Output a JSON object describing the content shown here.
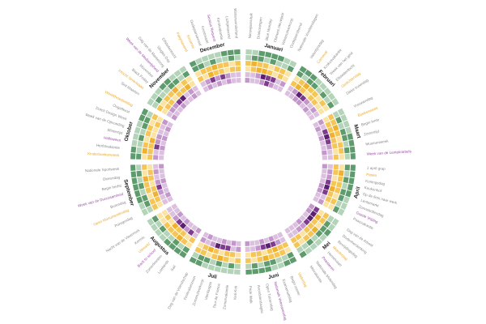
{
  "chart_data": {
    "type": "heatmap",
    "layout": "radial",
    "title": "",
    "rings": [
      "outer-green",
      "middle-yellow",
      "inner-purple"
    ],
    "colors": {
      "green_dark": "#5e9c6e",
      "green_light": "#b3d4b9",
      "yellow_dark": "#f0b22e",
      "yellow_light": "#fbe3a4",
      "purple_dark": "#7e3c8e",
      "purple_light": "#dcc0e0",
      "label_grey": "#8a8a8a",
      "label_yellow": "#e8a92b",
      "label_purple": "#9a4fa6",
      "month_text": "#222222"
    },
    "months": [
      {
        "name": "Januari",
        "events": [
          {
            "label": "Nieuwjaarsduik",
            "color": "grey"
          },
          {
            "label": "Driekoningen",
            "color": "grey"
          },
          {
            "label": "Blue Monday",
            "color": "grey"
          },
          {
            "label": "Chinees nieuwjaar",
            "color": "grey"
          },
          {
            "label": "Winteruitverkoop",
            "color": "grey"
          },
          {
            "label": "Oudejaarsborrel",
            "color": "grey"
          },
          {
            "label": "Nationale Voorleesdagen",
            "color": "grey"
          }
        ]
      },
      {
        "name": "Februari",
        "events": [
          {
            "label": "Valentijnsdag",
            "color": "grey"
          },
          {
            "label": "Carnaval",
            "color": "yellow"
          },
          {
            "label": "Krokusvakantie",
            "color": "grey"
          },
          {
            "label": "Week van het geld",
            "color": "grey"
          },
          {
            "label": "Elfstedentocht",
            "color": "grey"
          },
          {
            "label": "Gedichtendag",
            "color": "yellow"
          },
          {
            "label": "Dikke truiendag",
            "color": "grey"
          }
        ]
      },
      {
        "name": "Maart",
        "events": [
          {
            "label": "Vrouwendag",
            "color": "grey"
          },
          {
            "label": "Boekenweek",
            "color": "yellow"
          },
          {
            "label": "Begin lente",
            "color": "grey"
          },
          {
            "label": "Zomertijd",
            "color": "grey"
          },
          {
            "label": "Museumweek",
            "color": "grey"
          },
          {
            "label": "Week van de Lentekriebels",
            "color": "purple"
          }
        ]
      },
      {
        "name": "April",
        "events": [
          {
            "label": "1 april grap",
            "color": "grey"
          },
          {
            "label": "Pasen",
            "color": "yellow"
          },
          {
            "label": "Koningsdag",
            "color": "grey"
          },
          {
            "label": "Keukenhof",
            "color": "grey"
          },
          {
            "label": "Op de fiets naar werk",
            "color": "grey"
          },
          {
            "label": "Lentemarkt",
            "color": "grey"
          },
          {
            "label": "Zonnebrillendag",
            "color": "grey"
          },
          {
            "label": "Goede Vrijdag",
            "color": "purple"
          },
          {
            "label": "Paasvakantie",
            "color": "grey"
          }
        ]
      },
      {
        "name": "Mei",
        "events": [
          {
            "label": "Dag van de Arbeid",
            "color": "grey"
          },
          {
            "label": "Dodenherdenking",
            "color": "grey"
          },
          {
            "label": "Bevrijdingsdag",
            "color": "grey"
          },
          {
            "label": "Moederdag",
            "color": "yellow"
          },
          {
            "label": "Hemelvaart",
            "color": "grey"
          },
          {
            "label": "Pinksteren",
            "color": "purple"
          },
          {
            "label": "Nationale Molendag",
            "color": "grey"
          },
          {
            "label": "Meivakantie",
            "color": "grey"
          }
        ]
      },
      {
        "name": "Juni",
        "events": [
          {
            "label": "Vaderdag",
            "color": "yellow"
          },
          {
            "label": "Begin zomer",
            "color": "grey"
          },
          {
            "label": "Examenuitslag",
            "color": "grey"
          },
          {
            "label": "Nationale Veteranendag",
            "color": "purple"
          },
          {
            "label": "Open Tuinendag",
            "color": "grey"
          },
          {
            "label": "Avondvierdaagse",
            "color": "grey"
          },
          {
            "label": "Pride Walk",
            "color": "grey"
          }
        ]
      },
      {
        "name": "Juli",
        "events": [
          {
            "label": "Keti Koti",
            "color": "grey"
          },
          {
            "label": "Zomervakantie",
            "color": "grey"
          },
          {
            "label": "Tour de France",
            "color": "grey"
          },
          {
            "label": "Vierdaagse",
            "color": "grey"
          },
          {
            "label": "Zomeruitverkoop",
            "color": "grey"
          },
          {
            "label": "Festivalseizoen",
            "color": "grey"
          },
          {
            "label": "Dag van de Vriendschap",
            "color": "grey"
          }
        ]
      },
      {
        "name": "Augustus",
        "events": [
          {
            "label": "Sail",
            "color": "grey"
          },
          {
            "label": "Lowlands",
            "color": "grey"
          },
          {
            "label": "Zomerfeesten",
            "color": "grey"
          },
          {
            "label": "Back to school",
            "color": "purple"
          },
          {
            "label": "Uitmarkt",
            "color": "yellow"
          },
          {
            "label": "Kermis",
            "color": "grey"
          },
          {
            "label": "Nacht van de Vleermuis",
            "color": "grey"
          }
        ]
      },
      {
        "name": "September",
        "events": [
          {
            "label": "Prinsjesdag",
            "color": "grey"
          },
          {
            "label": "Open Monumentendag",
            "color": "yellow"
          },
          {
            "label": "Burendag",
            "color": "grey"
          },
          {
            "label": "Week van de Duurzaamheid",
            "color": "purple"
          },
          {
            "label": "Begin herfst",
            "color": "grey"
          },
          {
            "label": "Dierendag",
            "color": "grey"
          },
          {
            "label": "Nationale Sportweek",
            "color": "grey"
          }
        ]
      },
      {
        "name": "Oktober",
        "events": [
          {
            "label": "Kinderboekenweek",
            "color": "yellow"
          },
          {
            "label": "Herfstvakantie",
            "color": "grey"
          },
          {
            "label": "Halloween",
            "color": "purple"
          },
          {
            "label": "Wintertijd",
            "color": "grey"
          },
          {
            "label": "Week van de Opvoeding",
            "color": "grey"
          },
          {
            "label": "Dutch Design Week",
            "color": "grey"
          },
          {
            "label": "Oogstfeest",
            "color": "grey"
          },
          {
            "label": "Wereldvoedseldag",
            "color": "yellow"
          }
        ]
      },
      {
        "name": "November",
        "events": [
          {
            "label": "Sint-Maarten",
            "color": "grey"
          },
          {
            "label": "Intocht Sinterklaas",
            "color": "yellow"
          },
          {
            "label": "Black Friday",
            "color": "grey"
          },
          {
            "label": "Movember",
            "color": "grey"
          },
          {
            "label": "Week van de Mediawijsheid",
            "color": "purple"
          },
          {
            "label": "Dag van de Mantelzorg",
            "color": "grey"
          },
          {
            "label": "Singles Day",
            "color": "grey"
          },
          {
            "label": "Elfstedentocht",
            "color": "grey"
          }
        ]
      },
      {
        "name": "December",
        "events": [
          {
            "label": "Pakjesavond",
            "color": "yellow"
          },
          {
            "label": "Kerstmis",
            "color": "yellow"
          },
          {
            "label": "Oudejaarsavond",
            "color": "grey"
          },
          {
            "label": "Kerstmarkt",
            "color": "grey"
          },
          {
            "label": "Serious Request",
            "color": "purple"
          },
          {
            "label": "Kerstvakantie",
            "color": "grey"
          },
          {
            "label": "Lichtjesavond",
            "color": "grey"
          },
          {
            "label": "Winterwonderland",
            "color": "grey"
          }
        ]
      }
    ],
    "intensities": [
      [
        [
          0,
          1,
          1,
          0,
          1,
          0,
          0,
          1
        ],
        [
          1,
          2,
          1,
          1,
          0,
          1,
          1,
          0
        ],
        [
          0,
          1,
          2,
          2,
          1,
          0,
          1,
          0
        ],
        [
          0,
          0,
          1,
          3,
          2,
          2,
          0,
          1
        ],
        [
          1,
          0,
          0,
          1,
          2,
          1,
          0,
          0
        ]
      ],
      [
        [
          1,
          0,
          1,
          1,
          0,
          1,
          0,
          1
        ],
        [
          0,
          1,
          2,
          1,
          1,
          0,
          1,
          0
        ],
        [
          1,
          2,
          1,
          0,
          1,
          1,
          0,
          0
        ],
        [
          0,
          1,
          3,
          2,
          1,
          0,
          1,
          0
        ],
        [
          0,
          0,
          1,
          1,
          0,
          1,
          0,
          0
        ]
      ],
      [
        [
          0,
          1,
          0,
          1,
          1,
          0,
          1,
          0
        ],
        [
          1,
          1,
          2,
          1,
          0,
          1,
          1,
          0
        ],
        [
          0,
          1,
          1,
          2,
          1,
          1,
          0,
          1
        ],
        [
          1,
          0,
          2,
          3,
          2,
          1,
          0,
          0
        ],
        [
          0,
          1,
          0,
          1,
          0,
          0,
          1,
          0
        ]
      ],
      [
        [
          1,
          0,
          1,
          0,
          1,
          1,
          0,
          1
        ],
        [
          0,
          2,
          1,
          1,
          1,
          0,
          1,
          0
        ],
        [
          1,
          1,
          0,
          1,
          2,
          1,
          1,
          0
        ],
        [
          0,
          1,
          1,
          2,
          3,
          2,
          0,
          1
        ],
        [
          1,
          0,
          0,
          0,
          1,
          1,
          0,
          0
        ]
      ],
      [
        [
          0,
          1,
          1,
          1,
          0,
          1,
          0,
          0
        ],
        [
          1,
          1,
          0,
          2,
          1,
          1,
          0,
          1
        ],
        [
          0,
          2,
          1,
          1,
          1,
          0,
          1,
          1
        ],
        [
          2,
          3,
          3,
          2,
          1,
          1,
          0,
          0
        ],
        [
          1,
          1,
          0,
          0,
          1,
          0,
          0,
          0
        ]
      ],
      [
        [
          1,
          0,
          0,
          1,
          1,
          0,
          1,
          0
        ],
        [
          0,
          1,
          1,
          1,
          2,
          1,
          0,
          1
        ],
        [
          1,
          1,
          2,
          1,
          0,
          1,
          1,
          0
        ],
        [
          0,
          1,
          2,
          3,
          2,
          1,
          0,
          0
        ],
        [
          0,
          0,
          1,
          0,
          1,
          0,
          0,
          1
        ]
      ],
      [
        [
          0,
          1,
          0,
          1,
          0,
          1,
          1,
          0
        ],
        [
          1,
          0,
          1,
          2,
          1,
          0,
          1,
          1
        ],
        [
          0,
          1,
          1,
          0,
          1,
          2,
          1,
          0
        ],
        [
          1,
          0,
          2,
          2,
          3,
          1,
          0,
          1
        ],
        [
          0,
          1,
          0,
          1,
          0,
          0,
          1,
          0
        ]
      ],
      [
        [
          1,
          0,
          1,
          0,
          0,
          1,
          0,
          1
        ],
        [
          0,
          1,
          2,
          1,
          1,
          1,
          0,
          0
        ],
        [
          1,
          0,
          1,
          1,
          2,
          0,
          1,
          0
        ],
        [
          0,
          2,
          1,
          3,
          2,
          1,
          0,
          0
        ],
        [
          1,
          0,
          0,
          1,
          0,
          1,
          0,
          0
        ]
      ],
      [
        [
          0,
          1,
          1,
          0,
          1,
          0,
          1,
          0
        ],
        [
          1,
          1,
          0,
          1,
          1,
          2,
          0,
          1
        ],
        [
          0,
          1,
          2,
          1,
          0,
          1,
          1,
          0
        ],
        [
          0,
          0,
          1,
          2,
          1,
          0,
          1,
          0
        ],
        [
          0,
          1,
          0,
          0,
          1,
          0,
          0,
          1
        ]
      ],
      [
        [
          1,
          0,
          0,
          1,
          0,
          1,
          1,
          0
        ],
        [
          0,
          2,
          1,
          0,
          1,
          1,
          0,
          1
        ],
        [
          1,
          1,
          1,
          2,
          0,
          0,
          1,
          0
        ],
        [
          1,
          0,
          2,
          1,
          1,
          0,
          0,
          1
        ],
        [
          0,
          0,
          1,
          0,
          1,
          0,
          1,
          0
        ]
      ],
      [
        [
          0,
          1,
          0,
          0,
          1,
          1,
          0,
          1
        ],
        [
          1,
          0,
          1,
          1,
          2,
          0,
          1,
          0
        ],
        [
          0,
          1,
          1,
          0,
          1,
          1,
          2,
          0
        ],
        [
          0,
          1,
          1,
          2,
          3,
          0,
          1,
          0
        ],
        [
          1,
          0,
          0,
          1,
          0,
          0,
          1,
          0
        ]
      ],
      [
        [
          1,
          1,
          0,
          1,
          0,
          0,
          1,
          0
        ],
        [
          0,
          1,
          1,
          2,
          1,
          1,
          0,
          1
        ],
        [
          1,
          0,
          2,
          1,
          1,
          0,
          1,
          1
        ],
        [
          0,
          1,
          2,
          1,
          2,
          1,
          0,
          0
        ],
        [
          0,
          1,
          0,
          1,
          0,
          1,
          0,
          0
        ]
      ]
    ]
  }
}
